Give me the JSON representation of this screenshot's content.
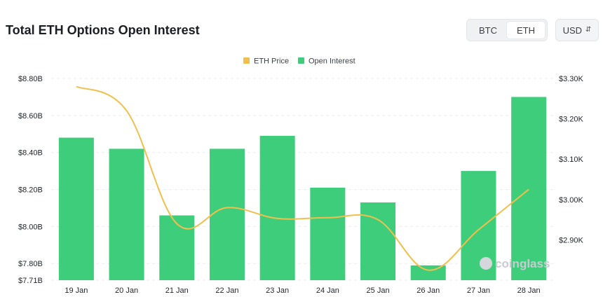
{
  "header": {
    "title": "Total ETH Options Open Interest",
    "asset_tabs": [
      {
        "label": "BTC",
        "active": false
      },
      {
        "label": "ETH",
        "active": true
      }
    ],
    "currency": "USD"
  },
  "watermark": "coinglass",
  "colors": {
    "bars": "#3ecd7b",
    "line": "#f0c04e",
    "grid": "#e9ebee"
  },
  "chart_data": {
    "type": "bar",
    "title": "Total ETH Options Open Interest",
    "categories": [
      "19 Jan",
      "20 Jan",
      "21 Jan",
      "22 Jan",
      "23 Jan",
      "24 Jan",
      "25 Jan",
      "26 Jan",
      "27 Jan",
      "28 Jan"
    ],
    "series": [
      {
        "name": "Open Interest",
        "type": "bar",
        "axis": "left",
        "values": [
          8.48,
          8.42,
          8.06,
          8.42,
          8.49,
          8.21,
          8.13,
          7.79,
          8.3,
          8.7
        ]
      },
      {
        "name": "ETH Price",
        "type": "line",
        "axis": "right",
        "values": [
          3.28,
          3.22,
          2.94,
          2.98,
          2.953,
          2.955,
          2.95,
          2.825,
          2.925,
          3.025
        ]
      }
    ],
    "y_left": {
      "ticks": [
        7.71,
        7.8,
        8.0,
        8.2,
        8.4,
        8.6,
        8.8
      ],
      "tick_labels": [
        "$7.71B",
        "$7.80B",
        "$8.00B",
        "$8.20B",
        "$8.40B",
        "$8.60B",
        "$8.80B"
      ],
      "range": [
        7.71,
        8.8
      ]
    },
    "y_right": {
      "ticks": [
        2.9,
        3.0,
        3.1,
        3.2,
        3.3
      ],
      "tick_labels": [
        "$2.90K",
        "$3.00K",
        "$3.10K",
        "$3.20K",
        "$3.30K"
      ],
      "range": [
        2.8,
        3.3
      ]
    },
    "legend": [
      {
        "label": "ETH Price",
        "color": "#f0c04e"
      },
      {
        "label": "Open Interest",
        "color": "#3ecd7b"
      }
    ],
    "legend_position": "top-center",
    "grid": true
  }
}
